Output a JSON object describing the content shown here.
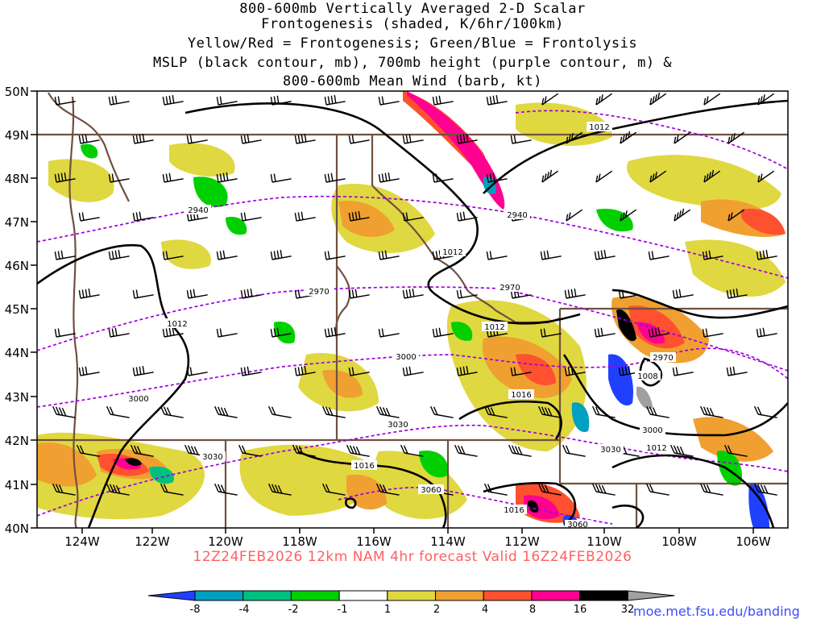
{
  "title_lines": [
    "800-600mb Vertically Averaged 2-D Scalar",
    "Frontogenesis (shaded, K/6hr/100km)",
    "Yellow/Red = Frontogenesis;  Green/Blue = Frontolysis",
    "MSLP (black contour, mb), 700mb height (purple contour, m) &",
    "800-600mb Mean Wind (barb, kt)"
  ],
  "lat_labels": [
    "50N",
    "49N",
    "48N",
    "47N",
    "46N",
    "45N",
    "44N",
    "43N",
    "42N",
    "41N",
    "40N"
  ],
  "lon_labels": [
    "124W",
    "122W",
    "120W",
    "118W",
    "116W",
    "114W",
    "112W",
    "110W",
    "108W",
    "106W"
  ],
  "run_info": "12Z24FEB2026  12km NAM  4hr forecast Valid  16Z24FEB2026",
  "url": "moe.met.fsu.edu/banding",
  "colorbar": {
    "labels": [
      "-8",
      "-4",
      "-2",
      "-1",
      "1",
      "2",
      "4",
      "8",
      "16",
      "32"
    ],
    "colors": [
      "#2040ff",
      "#00a0c0",
      "#00c080",
      "#00d000",
      "#ffffff",
      "#e0d840",
      "#f0a030",
      "#ff5030",
      "#ff0090",
      "#000000",
      "#a0a0a0"
    ]
  },
  "mslp_labels": [
    "1012",
    "1012",
    "1012",
    "1012",
    "1012",
    "1016",
    "1016",
    "1016",
    "1008"
  ],
  "height_labels": [
    "2940",
    "2940",
    "2970",
    "2970",
    "3000",
    "3000",
    "3000",
    "3030",
    "3030",
    "3030",
    "3060",
    "3060"
  ],
  "colors": {
    "mslp": "#000000",
    "height": "#a000e0",
    "borders": "#705040",
    "run_info": "#ff6060",
    "url": "#3b4cff"
  }
}
